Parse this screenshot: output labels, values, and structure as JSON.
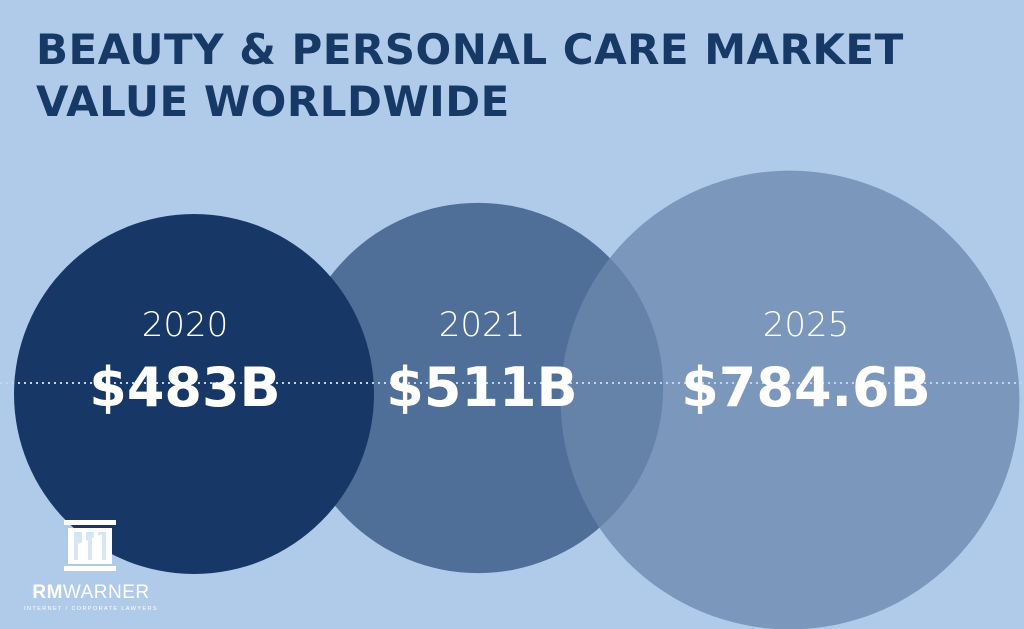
{
  "colors": {
    "background": "#b0cbea",
    "title": "#163966",
    "circle_2020": "#173866",
    "circle_2021": "#3f5f8a",
    "circle_2025": "#6b88ae",
    "label": "#ffffff",
    "divider": "#c4d4ea"
  },
  "chart_data": {
    "type": "bubble",
    "title_lines": [
      "BEAUTY & PERSONAL CARE MARKET",
      "VALUE WORLDWIDE"
    ],
    "unit": "billion USD",
    "categories": [
      "2020",
      "2021",
      "2025"
    ],
    "values": [
      483,
      511,
      784.6
    ],
    "value_labels": [
      "$483B",
      "$511B",
      "$784.6B"
    ],
    "grid": false,
    "legend": "none"
  },
  "logo": {
    "icon": "pillar-building-icon",
    "brand_bold": "RM",
    "brand_rest": "WARNER",
    "tagline": "INTERNET / CORPORATE LAWYERS"
  }
}
